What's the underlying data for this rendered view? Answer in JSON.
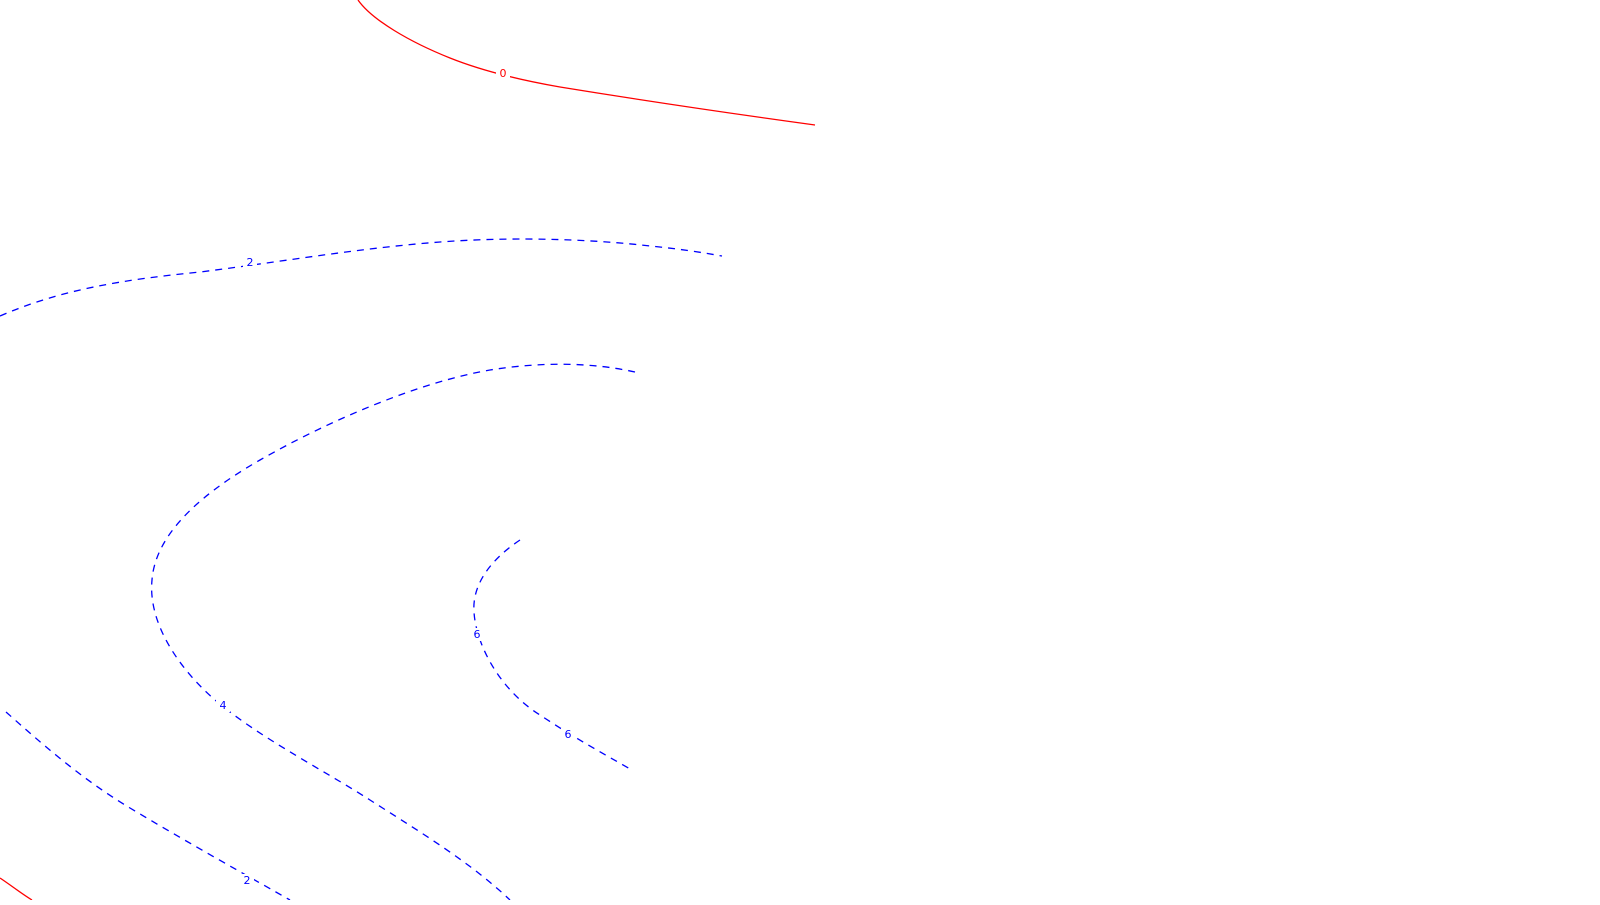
{
  "map": {
    "type": "contour-map",
    "colors": {
      "background": "#ffffff",
      "zero_contour": "#ff0000",
      "positive_contour": "#0000ff"
    },
    "contour_levels": [
      0,
      2,
      4,
      6
    ],
    "line_styles": {
      "zero": "solid",
      "positive": "dashed"
    },
    "labels": {
      "zero_top": "0",
      "two_upper": "2",
      "four_lower": "4",
      "six_left": "6",
      "six_lower": "6",
      "two_lower": "2"
    }
  }
}
